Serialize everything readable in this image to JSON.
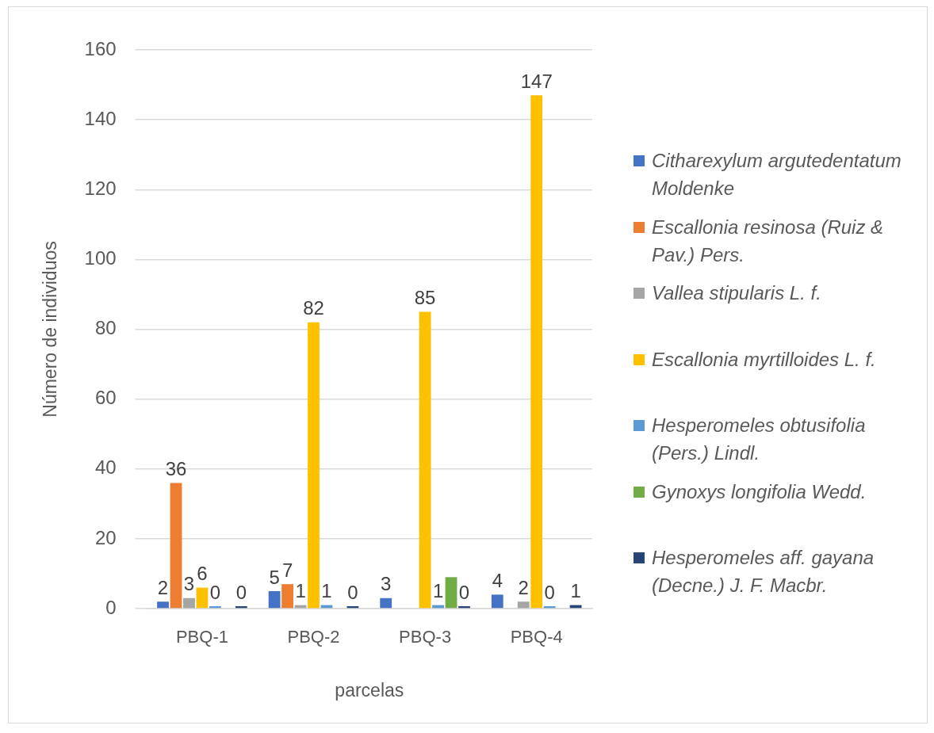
{
  "chart_data": {
    "type": "bar",
    "xlabel": "parcelas",
    "ylabel": "Número de individuos",
    "categories": [
      "PBQ-1",
      "PBQ-2",
      "PBQ-3",
      "PBQ-4"
    ],
    "series": [
      {
        "name": "Citharexylum argutedentatum Moldenke",
        "color": "#4472c4",
        "values": [
          2,
          5,
          3,
          4
        ],
        "value_labels": [
          "2",
          "5",
          "3",
          "4"
        ]
      },
      {
        "name": "Escallonia resinosa (Ruiz & Pav.) Pers.",
        "color": "#ed7d31",
        "values": [
          36,
          7,
          null,
          null
        ],
        "value_labels": [
          "36",
          "7",
          null,
          null
        ]
      },
      {
        "name": "Vallea stipularis L. f.",
        "color": "#a5a5a5",
        "values": [
          3,
          1,
          null,
          2
        ],
        "value_labels": [
          "3",
          "1",
          null,
          "2"
        ]
      },
      {
        "name": "Escallonia myrtilloides L. f.",
        "color": "#ffc000",
        "values": [
          6,
          82,
          85,
          147
        ],
        "value_labels": [
          "6",
          "82",
          "85",
          "147"
        ]
      },
      {
        "name": "Hesperomeles obtusifolia (Pers.) Lindl.",
        "color": "#5b9bd5",
        "values": [
          0,
          1,
          1,
          0
        ],
        "value_labels": [
          "0",
          "1",
          "1",
          "0"
        ]
      },
      {
        "name": "Gynoxys longifolia Wedd.",
        "color": "#70ad47",
        "values": [
          null,
          null,
          9,
          null
        ],
        "value_labels": [
          null,
          null,
          null,
          null
        ]
      },
      {
        "name": "Hesperomeles aff. gayana (Decne.) J. F. Macbr.",
        "color": "#264478",
        "values": [
          0,
          0,
          0,
          1
        ],
        "value_labels": [
          "0",
          "0",
          "0",
          "1"
        ]
      }
    ],
    "ylim": [
      0,
      160
    ],
    "yticks": [
      0,
      20,
      40,
      60,
      80,
      100,
      120,
      140,
      160
    ],
    "grid": "y",
    "legend": "right"
  }
}
